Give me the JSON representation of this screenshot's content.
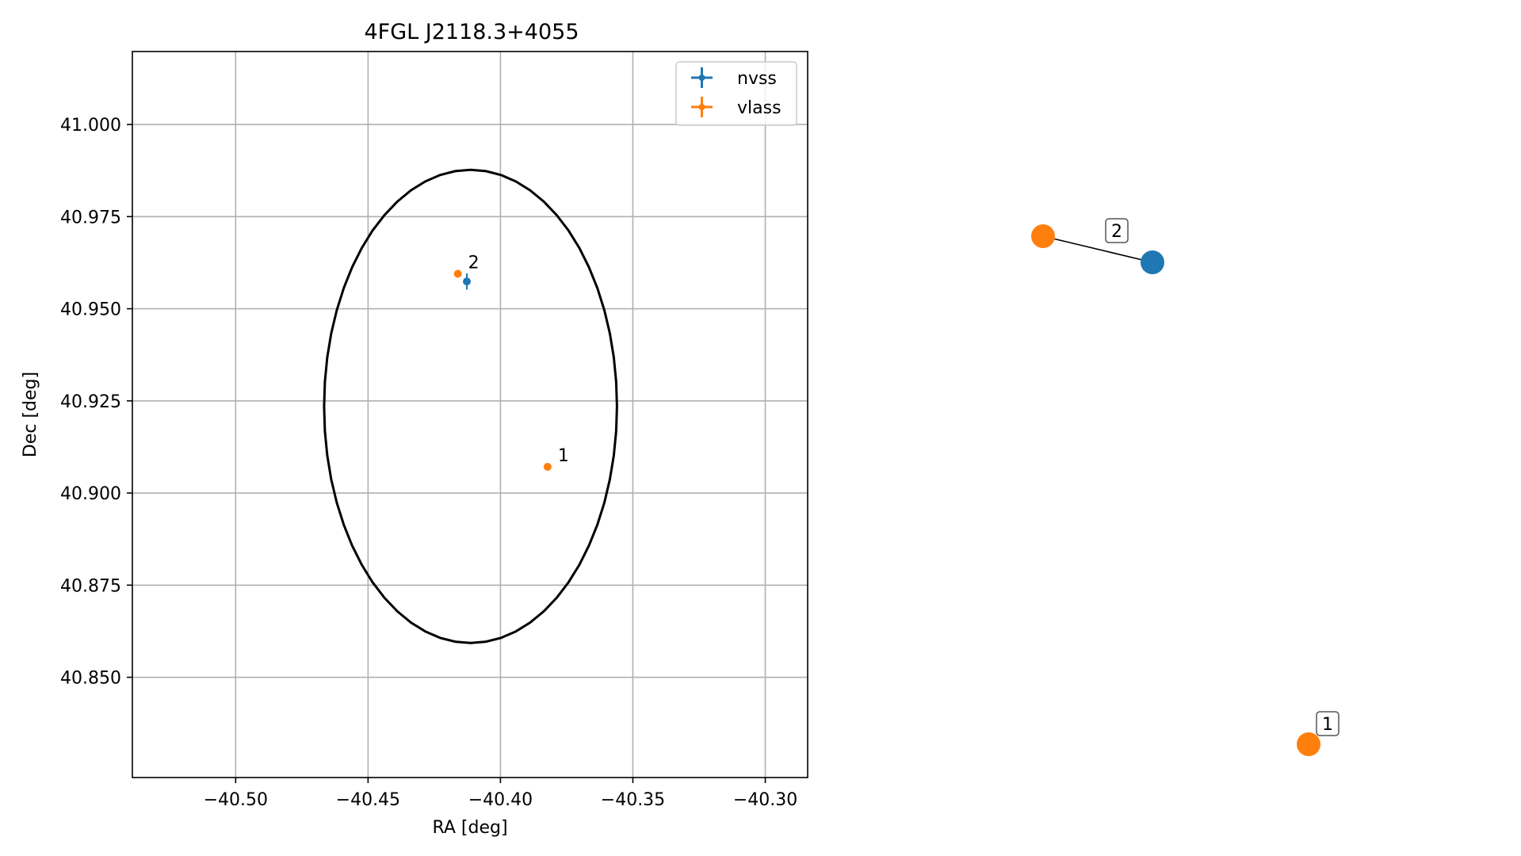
{
  "chart_data": [
    {
      "type": "scatter",
      "title": "4FGL J2118.3+4055",
      "xlabel": "RA [deg]",
      "ylabel": "Dec [deg]",
      "xlim": [
        -40.539,
        -40.284
      ],
      "ylim": [
        40.8228,
        41.0198
      ],
      "x_ticks": [
        -40.5,
        -40.45,
        -40.4,
        -40.35,
        -40.3
      ],
      "x_tick_labels": [
        "−40.50",
        "−40.45",
        "−40.40",
        "−40.35",
        "−40.30"
      ],
      "y_ticks": [
        40.85,
        40.875,
        40.9,
        40.925,
        40.95,
        40.975,
        41.0
      ],
      "y_tick_labels": [
        "40.850",
        "40.875",
        "40.900",
        "40.925",
        "40.950",
        "40.975",
        "41.000"
      ],
      "grid": true,
      "legend_position": "top-right",
      "series": [
        {
          "name": "nvss",
          "color": "#1f77b4",
          "points": [
            {
              "x": -40.4127,
              "y": 40.9574,
              "xerr": 0.0008,
              "yerr": 0.0022,
              "label": ""
            }
          ]
        },
        {
          "name": "vlass",
          "color": "#ff7f0e",
          "points": [
            {
              "x": -40.4161,
              "y": 40.9595,
              "xerr": 0.0003,
              "yerr": 0.0004,
              "label": "2"
            },
            {
              "x": -40.3822,
              "y": 40.9071,
              "xerr": 0.0003,
              "yerr": 0.0004,
              "label": "1"
            }
          ]
        }
      ],
      "error_ellipse": {
        "center_x": -40.4113,
        "center_y": 40.9235,
        "semi_x": 0.0553,
        "semi_y": 0.0642,
        "color": "#000000"
      }
    },
    {
      "type": "network",
      "nodes": [
        {
          "id": "vlass-2",
          "series": "vlass",
          "color": "#ff7f0e"
        },
        {
          "id": "nvss",
          "series": "nvss",
          "color": "#1f77b4"
        },
        {
          "id": "vlass-1",
          "series": "vlass",
          "color": "#ff7f0e"
        }
      ],
      "edges": [
        {
          "source": "vlass-2",
          "target": "nvss",
          "label": "2"
        }
      ],
      "isolated_labels": [
        {
          "node": "vlass-1",
          "label": "1"
        }
      ]
    }
  ]
}
